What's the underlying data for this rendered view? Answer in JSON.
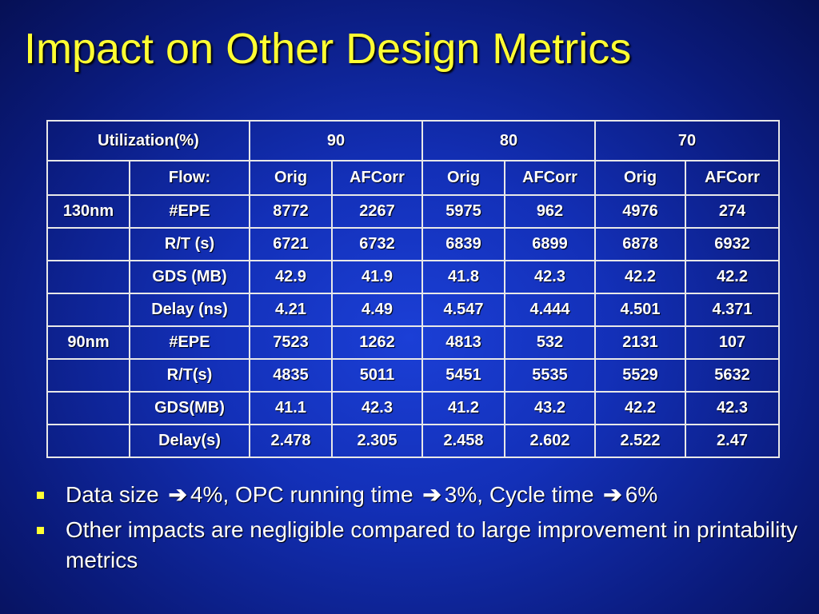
{
  "title": "Impact on Other Design Metrics",
  "table": {
    "header": {
      "label": "Utilization(%)",
      "groups": [
        "90",
        "80",
        "70"
      ]
    },
    "subheader": {
      "flow_label": "Flow:",
      "columns": [
        "Orig",
        "AFCorr",
        "Orig",
        "AFCorr",
        "Orig",
        "AFCorr"
      ]
    },
    "rows": [
      {
        "node": "130nm",
        "metric": "#EPE",
        "values": [
          "8772",
          "2267",
          "5975",
          "962",
          "4976",
          "274"
        ]
      },
      {
        "node": "",
        "metric": "R/T (s)",
        "values": [
          "6721",
          "6732",
          "6839",
          "6899",
          "6878",
          "6932"
        ]
      },
      {
        "node": "",
        "metric": "GDS (MB)",
        "values": [
          "42.9",
          "41.9",
          "41.8",
          "42.3",
          "42.2",
          "42.2"
        ]
      },
      {
        "node": "",
        "metric": "Delay (ns)",
        "values": [
          "4.21",
          "4.49",
          "4.547",
          "4.444",
          "4.501",
          "4.371"
        ]
      },
      {
        "node": "90nm",
        "metric": "#EPE",
        "values": [
          "7523",
          "1262",
          "4813",
          "532",
          "2131",
          "107"
        ]
      },
      {
        "node": "",
        "metric": "R/T(s)",
        "values": [
          "4835",
          "5011",
          "5451",
          "5535",
          "5529",
          "5632"
        ]
      },
      {
        "node": "",
        "metric": "GDS(MB)",
        "values": [
          "41.1",
          "42.3",
          "41.2",
          "43.2",
          "42.2",
          "42.3"
        ]
      },
      {
        "node": "",
        "metric": "Delay(s)",
        "values": [
          "2.478",
          "2.305",
          "2.458",
          "2.602",
          "2.522",
          "2.47"
        ]
      }
    ]
  },
  "bullets": {
    "b1": {
      "p1": "Data size",
      "p2": "4%, OPC running time",
      "p3": "3%, Cycle time",
      "p4": "6%"
    },
    "b2": "Other impacts are negligible compared to large improvement in printability metrics",
    "arrow_icon": "right-arrow-icon"
  },
  "colors": {
    "background": "#1330b8",
    "title": "#ffff33",
    "text": "#ffffff",
    "border": "#e8e8e8",
    "bullet_marker": "#ffff33"
  }
}
